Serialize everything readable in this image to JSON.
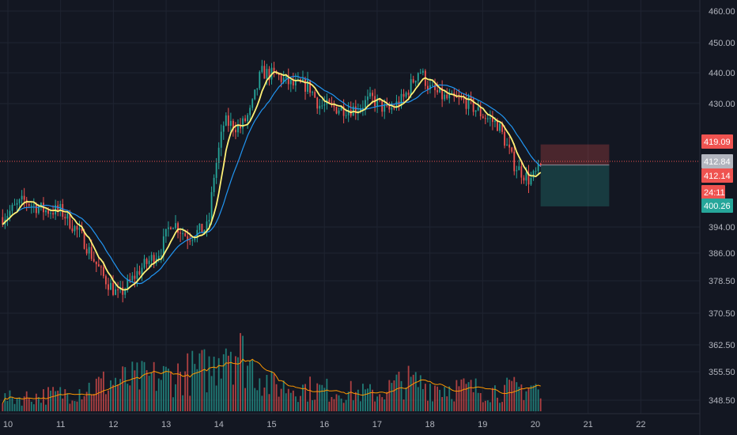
{
  "chart_data": {
    "type": "candlestick",
    "title": "",
    "grid": true,
    "x_axis": {
      "labels": [
        "10",
        "11",
        "12",
        "13",
        "14",
        "15",
        "16",
        "17",
        "18",
        "19",
        "20",
        "21",
        "22"
      ]
    },
    "y_axis": {
      "labels": [
        "460.00",
        "450.00",
        "440.00",
        "430.00",
        "419.09",
        "412.84",
        "412.14",
        "24:11",
        "400.26",
        "394.00",
        "386.00",
        "378.50",
        "370.50",
        "362.50",
        "355.50",
        "348.50"
      ],
      "ticks": [
        460.0,
        450.0,
        440.0,
        430.0,
        394.0,
        386.0,
        378.5,
        370.5,
        362.5,
        355.5,
        348.5
      ]
    },
    "price_tags": {
      "stop_loss": {
        "label": "419.09",
        "value": 419.09,
        "color": "#ef5350"
      },
      "current": {
        "label": "412.84",
        "value": 412.84,
        "color": "#b2b5be"
      },
      "last": {
        "label": "412.14",
        "value": 412.14,
        "color": "#ef5350"
      },
      "countdown": {
        "label": "24:11",
        "color": "#ef5350"
      },
      "take_profit": {
        "label": "400.26",
        "value": 400.26,
        "color": "#26a69a"
      }
    },
    "position_tool": {
      "entry": 412.84,
      "stop": 419.09,
      "target": 400.26,
      "start_x": 20.1,
      "end_x": 21.4
    },
    "colors": {
      "up": "#26a69a",
      "down": "#ef5350",
      "fast_ma": "#fff176",
      "slow_ma": "#2196f3",
      "volume_ma": "#ff9800",
      "background": "#131722"
    },
    "keypoints": [
      [
        9.9,
        397
      ],
      [
        10.3,
        402
      ],
      [
        10.7,
        399
      ],
      [
        11.0,
        399
      ],
      [
        11.4,
        391
      ],
      [
        11.8,
        379
      ],
      [
        12.1,
        373
      ],
      [
        12.5,
        381
      ],
      [
        12.9,
        387
      ],
      [
        13.1,
        396
      ],
      [
        13.4,
        391
      ],
      [
        13.8,
        394
      ],
      [
        13.9,
        409
      ],
      [
        14.1,
        426
      ],
      [
        14.4,
        424
      ],
      [
        14.6,
        429
      ],
      [
        14.8,
        441
      ],
      [
        15.1,
        440
      ],
      [
        15.4,
        437
      ],
      [
        15.7,
        437
      ],
      [
        15.9,
        431
      ],
      [
        16.3,
        430
      ],
      [
        16.6,
        430
      ],
      [
        16.9,
        433
      ],
      [
        17.2,
        429
      ],
      [
        17.5,
        433
      ],
      [
        17.8,
        442
      ],
      [
        18.0,
        436
      ],
      [
        18.3,
        433
      ],
      [
        18.7,
        432
      ],
      [
        19.0,
        428
      ],
      [
        19.3,
        425
      ],
      [
        19.6,
        413
      ],
      [
        19.9,
        408
      ],
      [
        20.1,
        412
      ]
    ],
    "volume_keypoints": [
      [
        10,
        3
      ],
      [
        11,
        4
      ],
      [
        12,
        7
      ],
      [
        13,
        8
      ],
      [
        13.9,
        10
      ],
      [
        14.1,
        18
      ],
      [
        14.5,
        12
      ],
      [
        15,
        6
      ],
      [
        16,
        5
      ],
      [
        17,
        4
      ],
      [
        17.5,
        7
      ],
      [
        18,
        6
      ],
      [
        19,
        5
      ],
      [
        19.5,
        5
      ],
      [
        20,
        6
      ],
      [
        20.1,
        3
      ]
    ]
  }
}
